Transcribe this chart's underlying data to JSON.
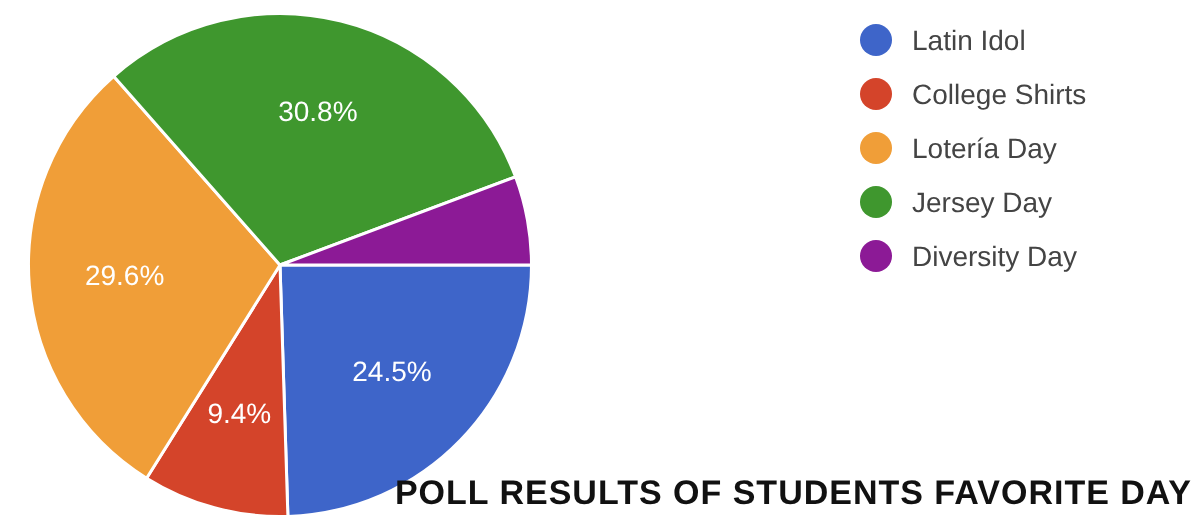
{
  "chart_data": {
    "type": "pie",
    "title": "POLL RESULTS OF STUDENTS FAVORITE DAY",
    "categories": [
      "Latin Idol",
      "College Shirts",
      "Lotería Day",
      "Jersey Day",
      "Diversity Day"
    ],
    "values": [
      24.5,
      9.4,
      29.6,
      30.8,
      5.7
    ],
    "colors": [
      "#3e65c9",
      "#d4442a",
      "#f09e38",
      "#3f972e",
      "#8c1a96"
    ],
    "value_labels": [
      "24.5%",
      "9.4%",
      "29.6%",
      "30.8%",
      null
    ],
    "legend": "top right"
  }
}
